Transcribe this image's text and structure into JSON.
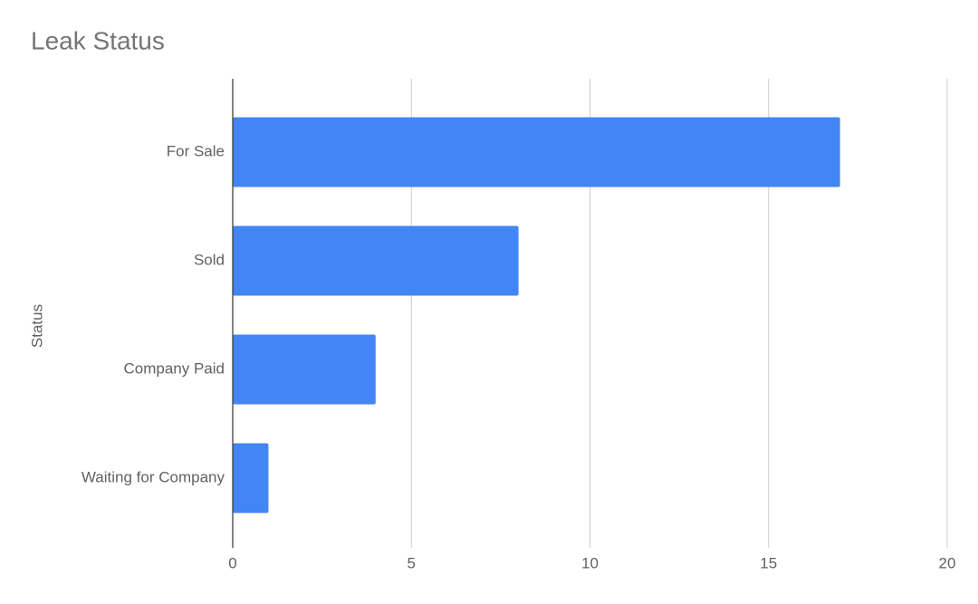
{
  "chart_data": {
    "type": "bar",
    "orientation": "horizontal",
    "title": "Leak Status",
    "y_label": "Status",
    "categories": [
      "For Sale",
      "Sold",
      "Company Paid",
      "Waiting for Company"
    ],
    "values": [
      17,
      8,
      4,
      1
    ],
    "color": "#4285f4",
    "xlim": [
      0,
      20
    ],
    "xticks": [
      0,
      5,
      10,
      15,
      20
    ],
    "grid": true
  }
}
